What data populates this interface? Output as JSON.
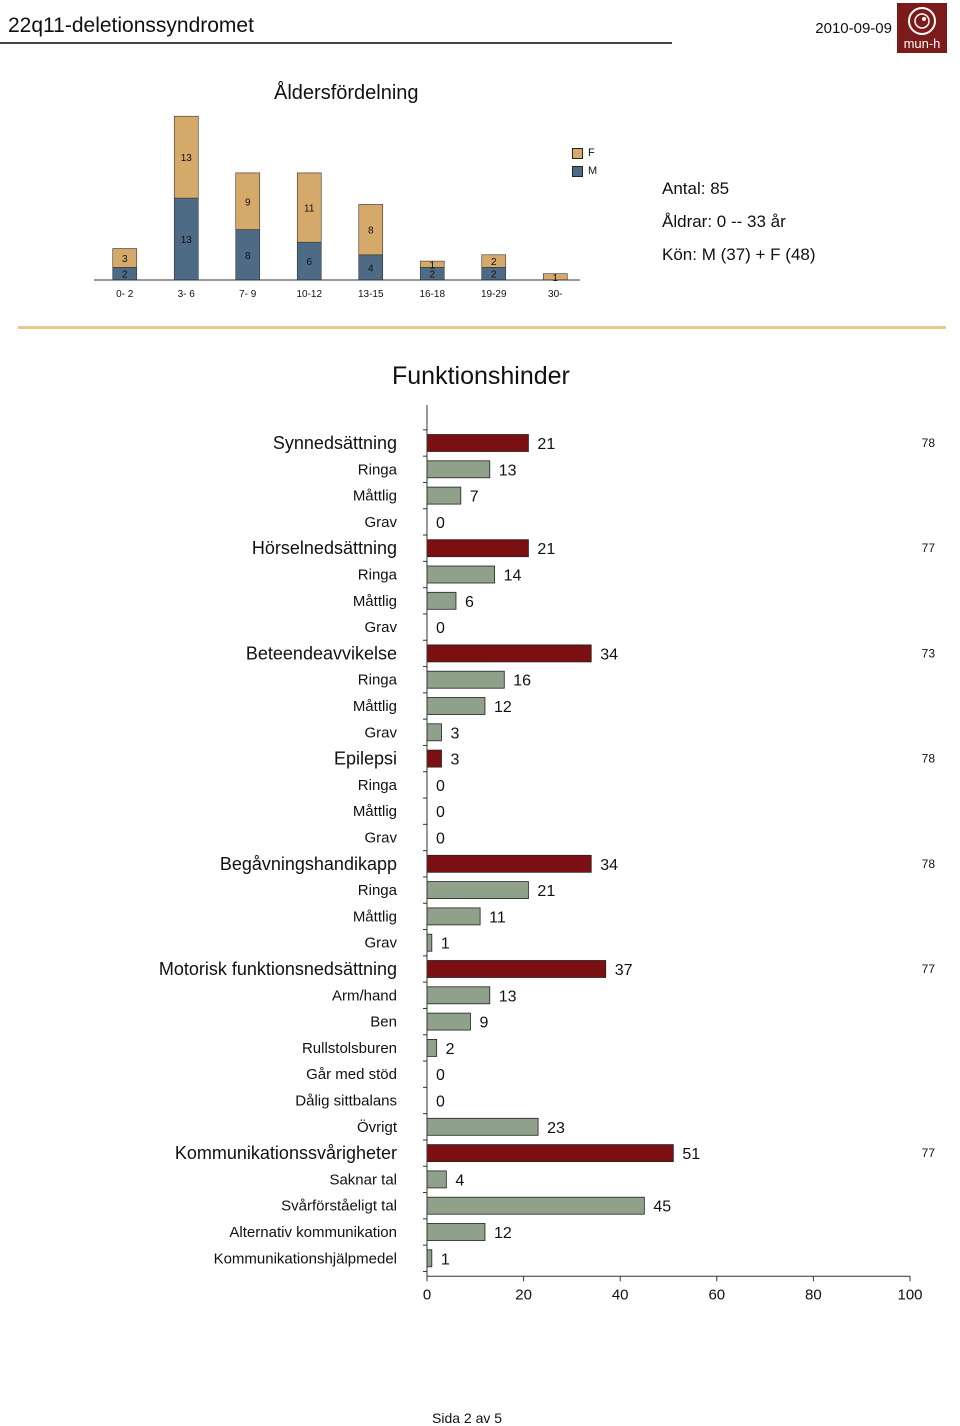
{
  "header": {
    "title": "22q11-deletionssyndromet",
    "date": "2010-09-09",
    "logo_text": "mun-h"
  },
  "summary": {
    "antal": "Antal: 85",
    "aldrar": "Åldrar: 0 -- 33 år",
    "kon": "Kön: M (37) + F (48)"
  },
  "colors": {
    "female": "#d4a96a",
    "male": "#4d6b84",
    "category_bar": "#7b0f12",
    "sub_bar": "#8fa08b",
    "section_rule": "#e6c98f"
  },
  "footer": {
    "page": "Sida 2 av 5"
  },
  "chart_data": [
    {
      "type": "bar",
      "stacked": true,
      "orientation": "vertical",
      "title": "Åldersfördelning",
      "categories": [
        "0- 2",
        "3- 6",
        "7- 9",
        "10-12",
        "13-15",
        "16-18",
        "19-29",
        "30-"
      ],
      "series": [
        {
          "name": "M",
          "values": [
            2,
            13,
            8,
            6,
            4,
            2,
            2,
            0
          ]
        },
        {
          "name": "F",
          "values": [
            3,
            13,
            9,
            11,
            8,
            1,
            2,
            1
          ]
        }
      ],
      "legend_position": "top-right",
      "grid": false
    },
    {
      "type": "bar",
      "orientation": "horizontal",
      "title": "Funktionshinder",
      "xlim": [
        0,
        100
      ],
      "xticks": [
        "0",
        "20",
        "40",
        "60",
        "80",
        "100"
      ],
      "grid": false,
      "groups": [
        {
          "label": "Synnedsättning",
          "value": 21,
          "n": "78",
          "items": [
            {
              "label": "Ringa",
              "value": 13
            },
            {
              "label": "Måttlig",
              "value": 7
            },
            {
              "label": "Grav",
              "value": 0
            }
          ]
        },
        {
          "label": "Hörselnedsättning",
          "value": 21,
          "n": "77",
          "items": [
            {
              "label": "Ringa",
              "value": 14
            },
            {
              "label": "Måttlig",
              "value": 6
            },
            {
              "label": "Grav",
              "value": 0
            }
          ]
        },
        {
          "label": "Beteendeavvikelse",
          "value": 34,
          "n": "73",
          "items": [
            {
              "label": "Ringa",
              "value": 16
            },
            {
              "label": "Måttlig",
              "value": 12
            },
            {
              "label": "Grav",
              "value": 3
            }
          ]
        },
        {
          "label": "Epilepsi",
          "value": 3,
          "n": "78",
          "items": [
            {
              "label": "Ringa",
              "value": 0
            },
            {
              "label": "Måttlig",
              "value": 0
            },
            {
              "label": "Grav",
              "value": 0
            }
          ]
        },
        {
          "label": "Begåvningshandikapp",
          "value": 34,
          "n": "78",
          "items": [
            {
              "label": "Ringa",
              "value": 21
            },
            {
              "label": "Måttlig",
              "value": 11
            },
            {
              "label": "Grav",
              "value": 1
            }
          ]
        },
        {
          "label": "Motorisk funktionsnedsättning",
          "value": 37,
          "n": "77",
          "items": [
            {
              "label": "Arm/hand",
              "value": 13
            },
            {
              "label": "Ben",
              "value": 9
            },
            {
              "label": "Rullstolsburen",
              "value": 2
            },
            {
              "label": "Går med stöd",
              "value": 0
            },
            {
              "label": "Dålig sittbalans",
              "value": 0
            },
            {
              "label": "Övrigt",
              "value": 23
            }
          ]
        },
        {
          "label": "Kommunikationssvårigheter",
          "value": 51,
          "n": "77",
          "items": [
            {
              "label": "Saknar tal",
              "value": 4
            },
            {
              "label": "Svårförståeligt tal",
              "value": 45
            },
            {
              "label": "Alternativ kommunikation",
              "value": 12
            },
            {
              "label": "Kommunikationshjälpmedel",
              "value": 1
            }
          ]
        }
      ]
    }
  ]
}
